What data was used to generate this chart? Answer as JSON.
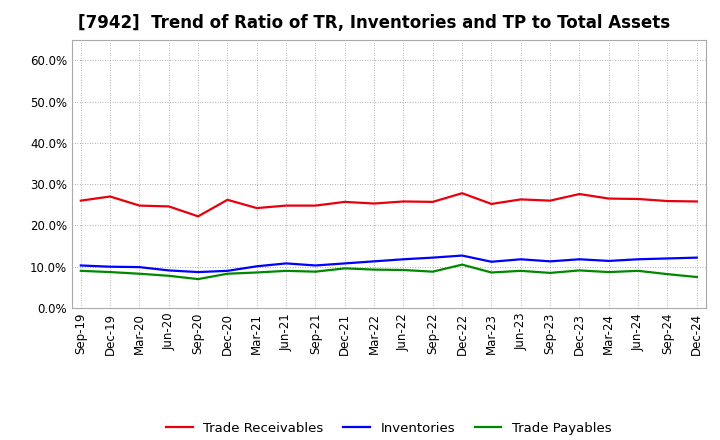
{
  "title": "[7942]  Trend of Ratio of TR, Inventories and TP to Total Assets",
  "labels": [
    "Sep-19",
    "Dec-19",
    "Mar-20",
    "Jun-20",
    "Sep-20",
    "Dec-20",
    "Mar-21",
    "Jun-21",
    "Sep-21",
    "Dec-21",
    "Mar-22",
    "Jun-22",
    "Sep-22",
    "Dec-22",
    "Mar-23",
    "Jun-23",
    "Sep-23",
    "Dec-23",
    "Mar-24",
    "Jun-24",
    "Sep-24",
    "Dec-24"
  ],
  "trade_receivables": [
    0.26,
    0.27,
    0.248,
    0.246,
    0.222,
    0.262,
    0.242,
    0.248,
    0.248,
    0.257,
    0.253,
    0.258,
    0.257,
    0.278,
    0.252,
    0.263,
    0.26,
    0.276,
    0.265,
    0.264,
    0.259,
    0.258
  ],
  "inventories": [
    0.103,
    0.1,
    0.099,
    0.091,
    0.087,
    0.09,
    0.101,
    0.108,
    0.103,
    0.108,
    0.113,
    0.118,
    0.122,
    0.127,
    0.112,
    0.118,
    0.113,
    0.118,
    0.114,
    0.118,
    0.12,
    0.122
  ],
  "trade_payables": [
    0.09,
    0.087,
    0.083,
    0.078,
    0.07,
    0.083,
    0.086,
    0.09,
    0.088,
    0.096,
    0.093,
    0.092,
    0.088,
    0.105,
    0.086,
    0.09,
    0.085,
    0.091,
    0.087,
    0.09,
    0.082,
    0.075
  ],
  "line_colors": [
    "#e8000d",
    "#0000ff",
    "#008800"
  ],
  "legend_labels": [
    "Trade Receivables",
    "Inventories",
    "Trade Payables"
  ],
  "ylim": [
    0.0,
    0.65
  ],
  "yticks": [
    0.0,
    0.1,
    0.2,
    0.3,
    0.4,
    0.5,
    0.6
  ],
  "background_color": "#ffffff",
  "plot_bg_color": "#ffffff",
  "grid_color": "#999999",
  "title_fontsize": 12,
  "tick_fontsize": 8.5,
  "legend_fontsize": 9.5,
  "line_width": 1.6
}
